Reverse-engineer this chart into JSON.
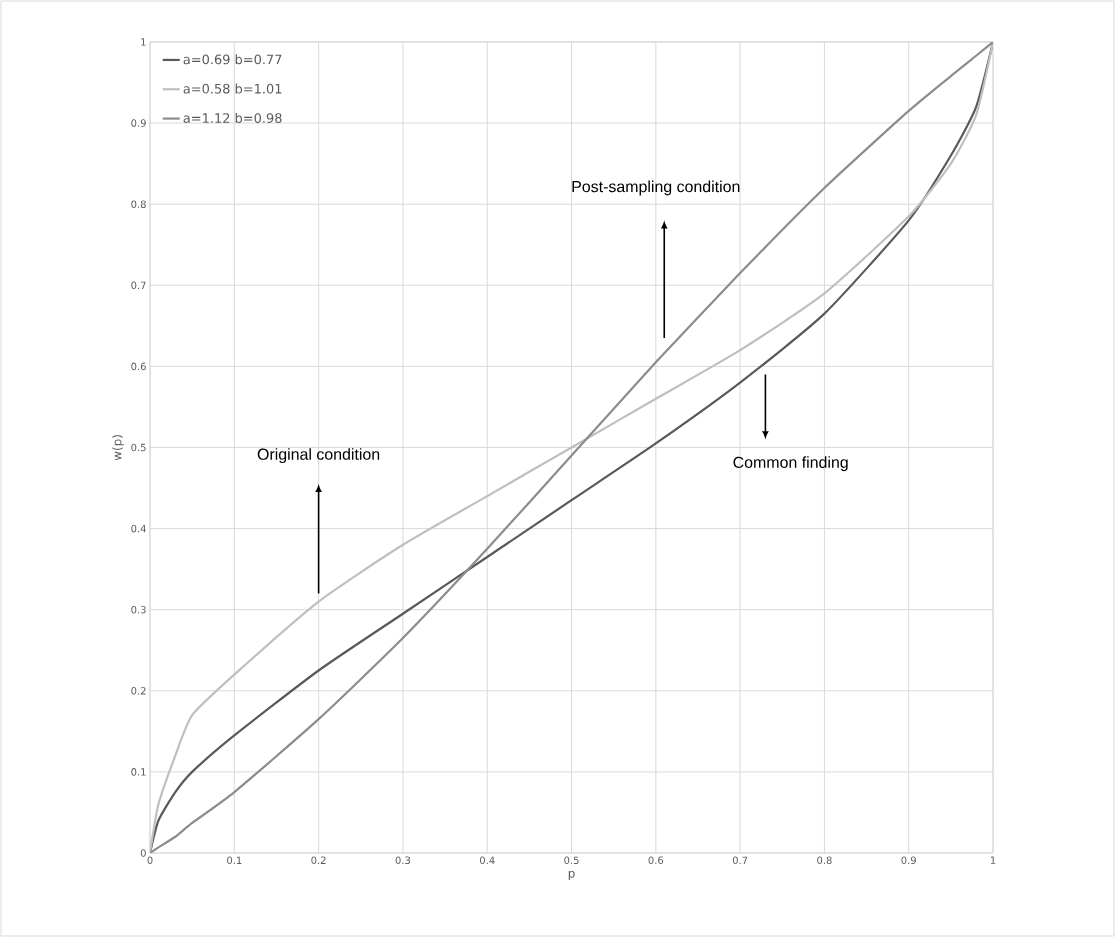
{
  "chart_data": {
    "type": "line",
    "xlabel": "p",
    "ylabel": "w(p)",
    "x": [
      0,
      0.01,
      0.03,
      0.05,
      0.1,
      0.2,
      0.3,
      0.4,
      0.5,
      0.6,
      0.7,
      0.8,
      0.9,
      0.95,
      0.98,
      1
    ],
    "series": [
      {
        "name": "a=0.69 b=0.77",
        "color": "#595959",
        "values": [
          0,
          0.04,
          0.075,
          0.1,
          0.145,
          0.225,
          0.295,
          0.365,
          0.435,
          0.505,
          0.58,
          0.665,
          0.78,
          0.86,
          0.92,
          1
        ]
      },
      {
        "name": "a=0.58 b=1.01",
        "color": "#bfbfbf",
        "values": [
          0,
          0.06,
          0.12,
          0.17,
          0.22,
          0.31,
          0.38,
          0.44,
          0.5,
          0.56,
          0.62,
          0.69,
          0.785,
          0.85,
          0.91,
          1
        ]
      },
      {
        "name": "a=1.12 b=0.98",
        "color": "#8c8c8c",
        "values": [
          0,
          0.007,
          0.02,
          0.037,
          0.075,
          0.165,
          0.265,
          0.375,
          0.49,
          0.605,
          0.715,
          0.82,
          0.915,
          0.958,
          0.983,
          1
        ]
      }
    ],
    "xlim": [
      0,
      1
    ],
    "ylim": [
      0,
      1
    ],
    "xticks": [
      0,
      0.1,
      0.2,
      0.3,
      0.4,
      0.5,
      0.6,
      0.7,
      0.8,
      0.9,
      1
    ],
    "yticks": [
      0,
      0.1,
      0.2,
      0.3,
      0.4,
      0.5,
      0.6,
      0.7,
      0.8,
      0.9,
      1
    ],
    "grid": true,
    "legend": "top left",
    "marker": "none",
    "line_style": "solid",
    "annotations": [
      "Original condition",
      "Post-sampling condition",
      "Common finding"
    ]
  }
}
